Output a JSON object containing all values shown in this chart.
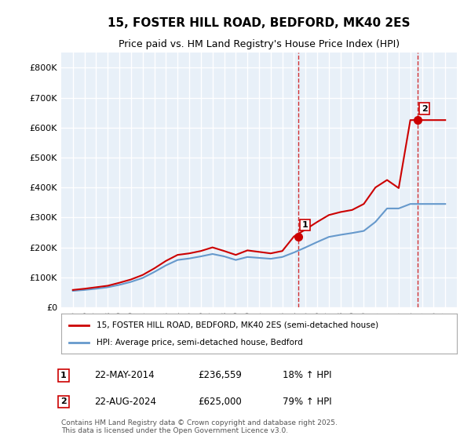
{
  "title": "15, FOSTER HILL ROAD, BEDFORD, MK40 2ES",
  "subtitle": "Price paid vs. HM Land Registry's House Price Index (HPI)",
  "footer": "Contains HM Land Registry data © Crown copyright and database right 2025.\nThis data is licensed under the Open Government Licence v3.0.",
  "legend_line1": "15, FOSTER HILL ROAD, BEDFORD, MK40 2ES (semi-detached house)",
  "legend_line2": "HPI: Average price, semi-detached house, Bedford",
  "annotation1_label": "1",
  "annotation1_date": "22-MAY-2014",
  "annotation1_price": "£236,559",
  "annotation1_hpi": "18% ↑ HPI",
  "annotation2_label": "2",
  "annotation2_date": "22-AUG-2024",
  "annotation2_price": "£625,000",
  "annotation2_hpi": "79% ↑ HPI",
  "red_color": "#cc0000",
  "blue_color": "#6699cc",
  "bg_color": "#e8f0f8",
  "grid_color": "#ffffff",
  "ylim": [
    0,
    850000
  ],
  "yticks": [
    0,
    100000,
    200000,
    300000,
    400000,
    500000,
    600000,
    700000,
    800000
  ],
  "ytick_labels": [
    "£0",
    "£100K",
    "£200K",
    "£300K",
    "£400K",
    "£500K",
    "£600K",
    "£700K",
    "£800K"
  ],
  "hpi_years": [
    1995,
    1996,
    1997,
    1998,
    1999,
    2000,
    2001,
    2002,
    2003,
    2004,
    2005,
    2006,
    2007,
    2008,
    2009,
    2010,
    2011,
    2012,
    2013,
    2014,
    2015,
    2016,
    2017,
    2018,
    2019,
    2020,
    2021,
    2022,
    2023,
    2024,
    2025,
    2026,
    2027
  ],
  "hpi_values": [
    55000,
    58000,
    62000,
    67000,
    75000,
    85000,
    98000,
    118000,
    140000,
    158000,
    163000,
    170000,
    178000,
    170000,
    158000,
    168000,
    165000,
    162000,
    168000,
    183000,
    200000,
    218000,
    235000,
    242000,
    248000,
    255000,
    285000,
    330000,
    330000,
    345000,
    345000,
    345000,
    345000
  ],
  "red_years": [
    1995,
    1996,
    1997,
    1998,
    1999,
    2000,
    2001,
    2002,
    2003,
    2004,
    2005,
    2006,
    2007,
    2008,
    2009,
    2010,
    2011,
    2012,
    2013,
    2014,
    2015,
    2016,
    2017,
    2018,
    2019,
    2020,
    2021,
    2022,
    2023,
    2024,
    2025,
    2026,
    2027
  ],
  "red_values": [
    58000,
    62000,
    67000,
    72000,
    82000,
    93000,
    108000,
    130000,
    155000,
    175000,
    180000,
    188000,
    200000,
    188000,
    175000,
    190000,
    185000,
    180000,
    188000,
    236559,
    260000,
    285000,
    308000,
    318000,
    325000,
    345000,
    400000,
    425000,
    398000,
    625000,
    625000,
    625000,
    625000
  ],
  "marker1_x": 2014.38,
  "marker1_y": 236559,
  "marker2_x": 2024.64,
  "marker2_y": 625000,
  "vline1_x": 2014.38,
  "vline2_x": 2024.64,
  "xlim": [
    1994,
    2028
  ],
  "xticks": [
    1995,
    1996,
    1997,
    1998,
    1999,
    2000,
    2001,
    2002,
    2003,
    2004,
    2005,
    2006,
    2007,
    2008,
    2009,
    2010,
    2011,
    2012,
    2013,
    2014,
    2015,
    2016,
    2017,
    2018,
    2019,
    2020,
    2021,
    2022,
    2023,
    2024,
    2025,
    2026,
    2027
  ]
}
